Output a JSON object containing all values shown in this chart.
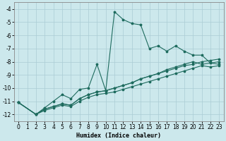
{
  "xlabel": "Humidex (Indice chaleur)",
  "xlim": [
    -0.5,
    23.5
  ],
  "ylim": [
    -12.5,
    -3.5
  ],
  "yticks": [
    -12,
    -11,
    -10,
    -9,
    -8,
    -7,
    -6,
    -5,
    -4
  ],
  "xticks": [
    0,
    1,
    2,
    3,
    4,
    5,
    6,
    7,
    8,
    9,
    10,
    11,
    12,
    13,
    14,
    15,
    16,
    17,
    18,
    19,
    20,
    21,
    22,
    23
  ],
  "bg_color": "#cce8ec",
  "grid_color": "#aaccd4",
  "line_color": "#1e6b5e",
  "lines": [
    {
      "x": [
        0,
        2,
        3,
        4,
        5,
        6,
        7,
        8,
        9,
        10,
        11,
        12,
        13,
        14,
        15,
        16,
        17,
        18,
        19,
        20,
        21,
        22,
        23
      ],
      "y": [
        -11.1,
        -12.0,
        -11.5,
        -11.0,
        -10.5,
        -10.8,
        -10.1,
        -10.0,
        -8.2,
        -10.2,
        -4.2,
        -4.8,
        -5.1,
        -5.2,
        -7.0,
        -6.8,
        -7.2,
        -6.8,
        -7.2,
        -7.5,
        -7.5,
        -8.1,
        -8.2
      ]
    },
    {
      "x": [
        0,
        2,
        3,
        4,
        5,
        6,
        7,
        8,
        9,
        10,
        11,
        12,
        13,
        14,
        15,
        16,
        17,
        18,
        19,
        20,
        21,
        22,
        23
      ],
      "y": [
        -11.1,
        -12.0,
        -11.6,
        -11.4,
        -11.2,
        -11.3,
        -10.8,
        -10.5,
        -10.3,
        -10.2,
        -10.0,
        -9.8,
        -9.6,
        -9.3,
        -9.1,
        -8.9,
        -8.7,
        -8.5,
        -8.3,
        -8.2,
        -8.0,
        -7.9,
        -7.8
      ]
    },
    {
      "x": [
        0,
        2,
        3,
        4,
        5,
        6,
        7,
        8,
        9,
        10,
        11,
        12,
        13,
        14,
        15,
        16,
        17,
        18,
        19,
        20,
        21,
        22,
        23
      ],
      "y": [
        -11.1,
        -12.0,
        -11.6,
        -11.4,
        -11.2,
        -11.3,
        -10.8,
        -10.5,
        -10.3,
        -10.2,
        -10.0,
        -9.8,
        -9.6,
        -9.3,
        -9.1,
        -8.9,
        -8.6,
        -8.4,
        -8.2,
        -8.0,
        -8.2,
        -8.1,
        -8.0
      ]
    },
    {
      "x": [
        0,
        2,
        3,
        4,
        5,
        6,
        7,
        8,
        9,
        10,
        11,
        12,
        13,
        14,
        15,
        16,
        17,
        18,
        19,
        20,
        21,
        22,
        23
      ],
      "y": [
        -11.1,
        -12.0,
        -11.7,
        -11.5,
        -11.3,
        -11.4,
        -11.0,
        -10.7,
        -10.5,
        -10.4,
        -10.3,
        -10.1,
        -9.9,
        -9.7,
        -9.5,
        -9.3,
        -9.1,
        -8.9,
        -8.7,
        -8.5,
        -8.3,
        -8.4,
        -8.3
      ]
    }
  ]
}
